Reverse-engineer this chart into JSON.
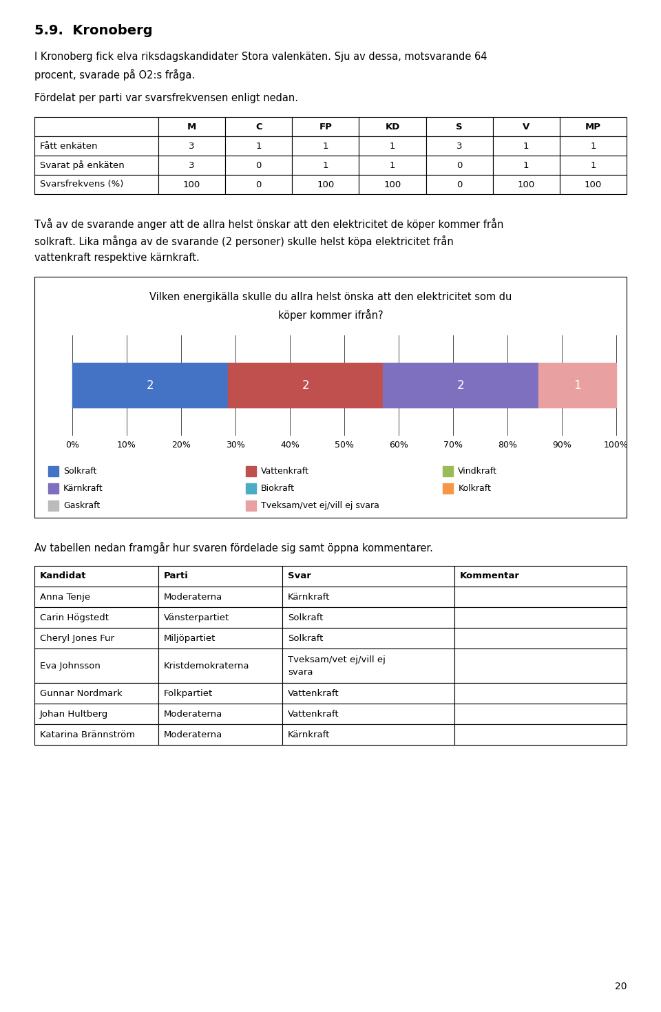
{
  "title": "5.9.  Kronoberg",
  "paragraph1_line1": "I Kronoberg fick elva riksdagskandidater Stora valenkäten. Sju av dessa, motsvarande 64",
  "paragraph1_line2": "procent, svarade på O2:s fråga.",
  "paragraph2": "Fördelat per parti var svarsfrekvensen enligt nedan.",
  "freq_table": {
    "headers": [
      "",
      "M",
      "C",
      "FP",
      "KD",
      "S",
      "V",
      "MP"
    ],
    "rows": [
      [
        "Fått enkäten",
        "3",
        "1",
        "1",
        "1",
        "3",
        "1",
        "1"
      ],
      [
        "Svarat på enkäten",
        "3",
        "0",
        "1",
        "1",
        "0",
        "1",
        "1"
      ],
      [
        "Svarsfrekvens (%)",
        "100",
        "0",
        "100",
        "100",
        "0",
        "100",
        "100"
      ]
    ]
  },
  "paragraph3_line1": "Två av de svarande anger att de allra helst önskar att den elektricitet de köper kommer från",
  "paragraph3_line2": "solkraft. Lika många av de svarande (2 personer) skulle helst köpa elektricitet från",
  "paragraph3_line3": "vattenkraft respektive kärnkraft.",
  "chart_title_line1": "Vilken energikälla skulle du allra helst önska att den elektricitet som du",
  "chart_title_line2": "köper kommer ifrån?",
  "bar_data": {
    "Solkraft": {
      "value": 2,
      "color": "#4472C4"
    },
    "Vattenkraft": {
      "value": 2,
      "color": "#C0504D"
    },
    "Vindkraft": {
      "value": 0,
      "color": "#9BBB59"
    },
    "Kärnkraft": {
      "value": 2,
      "color": "#7F6FBF"
    },
    "Biokraft": {
      "value": 0,
      "color": "#4BACC6"
    },
    "Kolkraft": {
      "value": 0,
      "color": "#F79646"
    },
    "Gaskraft": {
      "value": 0,
      "color": "#BBBBBB"
    },
    "Tveksam/vet ej/vill ej svara": {
      "value": 1,
      "color": "#E8A0A0"
    }
  },
  "bar_order": [
    "Solkraft",
    "Vattenkraft",
    "Vindkraft",
    "Kärnkraft",
    "Biokraft",
    "Kolkraft",
    "Gaskraft",
    "Tveksam/vet ej/vill ej svara"
  ],
  "legend_items": [
    [
      "Solkraft",
      "#4472C4"
    ],
    [
      "Vattenkraft",
      "#C0504D"
    ],
    [
      "Vindkraft",
      "#9BBB59"
    ],
    [
      "Kärnkraft",
      "#7F6FBF"
    ],
    [
      "Biokraft",
      "#4BACC6"
    ],
    [
      "Kolkraft",
      "#F79646"
    ],
    [
      "Gaskraft",
      "#BBBBBB"
    ],
    [
      "Tveksam/vet ej/vill ej svara",
      "#E8A0A0"
    ]
  ],
  "paragraph4": "Av tabellen nedan framgår hur svaren fördelade sig samt öppna kommentarer.",
  "candidates_table": {
    "headers": [
      "Kandidat",
      "Parti",
      "Svar",
      "Kommentar"
    ],
    "rows": [
      [
        "Anna Tenje",
        "Moderaterna",
        "Kärnkraft",
        ""
      ],
      [
        "Carin Högstedt",
        "Vänsterpartiet",
        "Solkraft",
        ""
      ],
      [
        "Cheryl Jones Fur",
        "Miljöpartiet",
        "Solkraft",
        ""
      ],
      [
        "Eva Johnsson",
        "Kristdemokraterna",
        "Tveksam/vet ej/vill ej\nsvara",
        ""
      ],
      [
        "Gunnar Nordmark",
        "Folkpartiet",
        "Vattenkraft",
        ""
      ],
      [
        "Johan Hultberg",
        "Moderaterna",
        "Vattenkraft",
        ""
      ],
      [
        "Katarina Brännström",
        "Moderaterna",
        "Kärnkraft",
        ""
      ]
    ]
  },
  "page_number": "20"
}
